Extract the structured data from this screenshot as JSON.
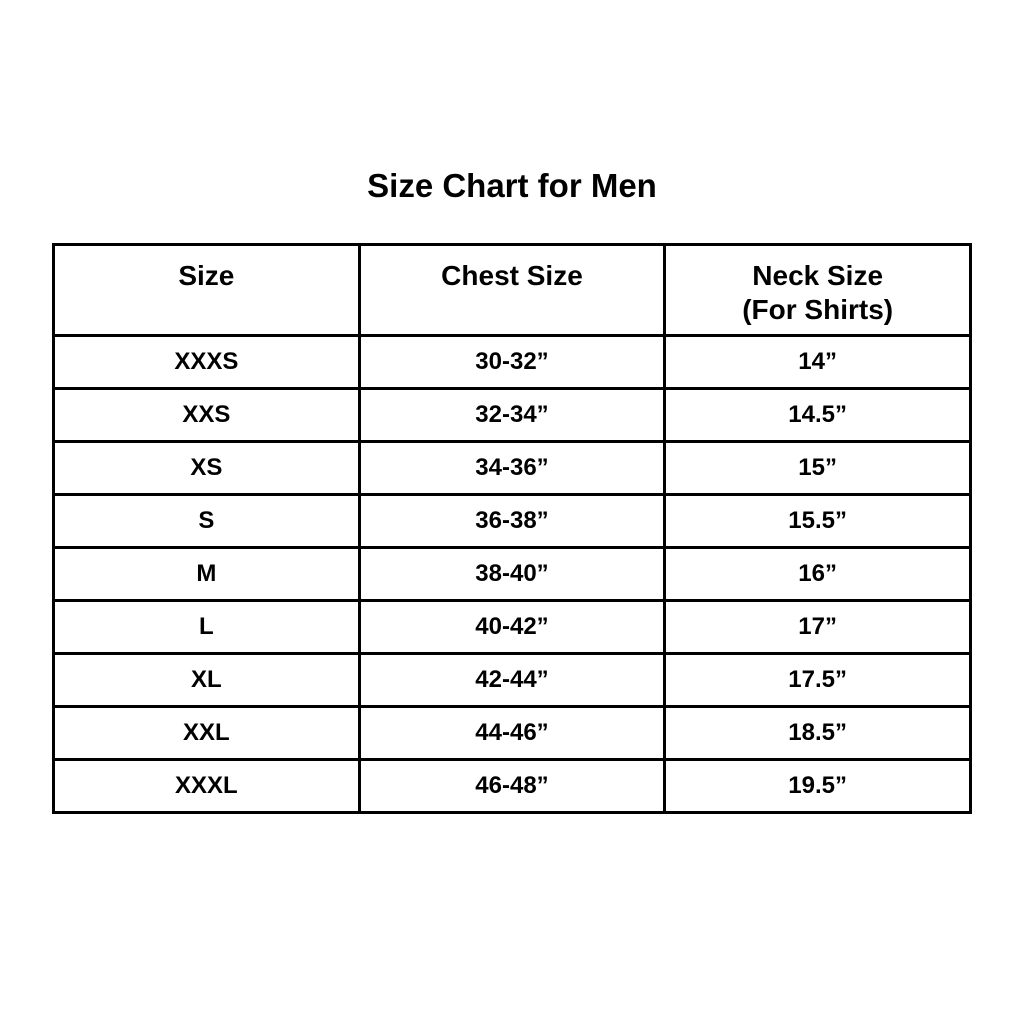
{
  "page": {
    "background_color": "#ffffff",
    "text_color": "#000000",
    "border_color": "#000000"
  },
  "title": "Size Chart for Men",
  "table": {
    "header_size": "Size",
    "header_chest": "Chest Size",
    "header_neck_line1": "Neck Size",
    "header_neck_line2": "(For Shirts)"
  },
  "chart_data": {
    "type": "table",
    "title": "Size Chart for Men",
    "columns": [
      "Size",
      "Chest Size",
      "Neck Size (For Shirts)"
    ],
    "rows": [
      [
        "XXXS",
        "30-32”",
        "14”"
      ],
      [
        "XXS",
        "32-34”",
        "14.5”"
      ],
      [
        "XS",
        "34-36”",
        "15”"
      ],
      [
        "S",
        "36-38”",
        "15.5”"
      ],
      [
        "M",
        "38-40”",
        "16”"
      ],
      [
        "L",
        "40-42”",
        "17”"
      ],
      [
        "XL",
        "42-44”",
        "17.5”"
      ],
      [
        "XXL",
        "44-46”",
        "18.5”"
      ],
      [
        "XXXL",
        "46-48”",
        "19.5”"
      ]
    ],
    "layout": {
      "grid": true,
      "header_row": true,
      "all_text_bold": true,
      "cell_alignment": "center"
    }
  }
}
